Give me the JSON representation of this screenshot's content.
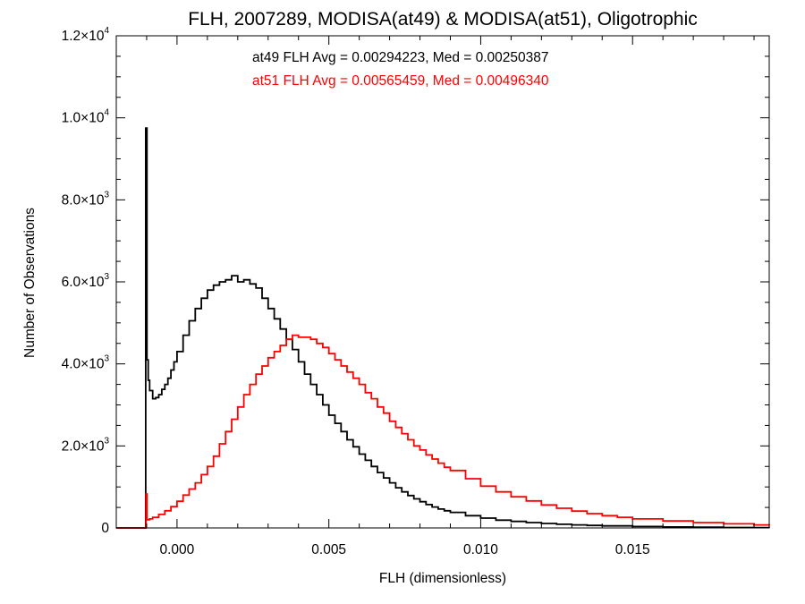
{
  "chart_data": {
    "type": "line",
    "title": "FLH, 2007289, MODISA(at49) & MODISA(at51), Oligotrophic",
    "xlabel": "FLH (dimensionless)",
    "ylabel": "Number of Observations",
    "xlim": [
      -0.002,
      0.0195
    ],
    "ylim": [
      0,
      12000
    ],
    "x_ticks": [
      {
        "value": 0.0,
        "label": "0.000"
      },
      {
        "value": 0.005,
        "label": "0.005"
      },
      {
        "value": 0.01,
        "label": "0.010"
      },
      {
        "value": 0.015,
        "label": "0.015"
      }
    ],
    "y_ticks": [
      {
        "value": 0,
        "mant": "0",
        "exp": ""
      },
      {
        "value": 2000,
        "mant": "2.0×10",
        "exp": "3"
      },
      {
        "value": 4000,
        "mant": "4.0×10",
        "exp": "3"
      },
      {
        "value": 6000,
        "mant": "6.0×10",
        "exp": "3"
      },
      {
        "value": 8000,
        "mant": "8.0×10",
        "exp": "3"
      },
      {
        "value": 10000,
        "mant": "1.0×10",
        "exp": "4"
      },
      {
        "value": 12000,
        "mant": "1.2×10",
        "exp": "4"
      }
    ],
    "annotations": [
      {
        "text": "at49 FLH Avg = 0.00294223, Med = 0.00250387",
        "color": "#000000"
      },
      {
        "text": "at51 FLH Avg = 0.00565459, Med = 0.00496340",
        "color": "#ff0000"
      }
    ],
    "series": [
      {
        "color": "#000000",
        "points": [
          [
            -0.002,
            0
          ],
          [
            -0.00105,
            0
          ],
          [
            -0.00103,
            9750
          ],
          [
            -0.00099,
            4100
          ],
          [
            -0.00095,
            3600
          ],
          [
            -0.0009,
            3350
          ],
          [
            -0.0008,
            3150
          ],
          [
            -0.0007,
            3180
          ],
          [
            -0.0006,
            3250
          ],
          [
            -0.0005,
            3380
          ],
          [
            -0.0004,
            3500
          ],
          [
            -0.0003,
            3650
          ],
          [
            -0.0002,
            3850
          ],
          [
            -0.0001,
            4050
          ],
          [
            0.0,
            4300
          ],
          [
            0.0002,
            4700
          ],
          [
            0.0004,
            5050
          ],
          [
            0.0006,
            5350
          ],
          [
            0.0008,
            5600
          ],
          [
            0.001,
            5800
          ],
          [
            0.0012,
            5920
          ],
          [
            0.0014,
            6000
          ],
          [
            0.0016,
            6050
          ],
          [
            0.0018,
            6150
          ],
          [
            0.002,
            6000
          ],
          [
            0.0022,
            6050
          ],
          [
            0.0024,
            5950
          ],
          [
            0.0026,
            5850
          ],
          [
            0.0028,
            5600
          ],
          [
            0.003,
            5350
          ],
          [
            0.0032,
            5100
          ],
          [
            0.0034,
            4850
          ],
          [
            0.0036,
            4600
          ],
          [
            0.0038,
            4350
          ],
          [
            0.004,
            4050
          ],
          [
            0.0042,
            3750
          ],
          [
            0.0044,
            3500
          ],
          [
            0.0046,
            3250
          ],
          [
            0.0048,
            3000
          ],
          [
            0.005,
            2750
          ],
          [
            0.0052,
            2550
          ],
          [
            0.0054,
            2350
          ],
          [
            0.0056,
            2150
          ],
          [
            0.0058,
            1980
          ],
          [
            0.006,
            1800
          ],
          [
            0.0062,
            1650
          ],
          [
            0.0064,
            1500
          ],
          [
            0.0066,
            1350
          ],
          [
            0.0068,
            1220
          ],
          [
            0.007,
            1100
          ],
          [
            0.0072,
            980
          ],
          [
            0.0074,
            880
          ],
          [
            0.0076,
            790
          ],
          [
            0.0078,
            710
          ],
          [
            0.008,
            640
          ],
          [
            0.0082,
            570
          ],
          [
            0.0084,
            510
          ],
          [
            0.0086,
            460
          ],
          [
            0.0088,
            420
          ],
          [
            0.009,
            380
          ],
          [
            0.0095,
            300
          ],
          [
            0.01,
            240
          ],
          [
            0.0105,
            190
          ],
          [
            0.011,
            160
          ],
          [
            0.0115,
            130
          ],
          [
            0.012,
            110
          ],
          [
            0.0125,
            90
          ],
          [
            0.013,
            75
          ],
          [
            0.0135,
            62
          ],
          [
            0.014,
            50
          ],
          [
            0.015,
            35
          ],
          [
            0.016,
            25
          ],
          [
            0.017,
            18
          ],
          [
            0.018,
            12
          ],
          [
            0.019,
            8
          ],
          [
            0.0195,
            6
          ]
        ]
      },
      {
        "color": "#ff0000",
        "points": [
          [
            -0.002,
            0
          ],
          [
            -0.00105,
            0
          ],
          [
            -0.00102,
            830
          ],
          [
            -0.00099,
            200
          ],
          [
            -0.0009,
            220
          ],
          [
            -0.0008,
            260
          ],
          [
            -0.0006,
            330
          ],
          [
            -0.0004,
            420
          ],
          [
            -0.0002,
            520
          ],
          [
            0.0,
            650
          ],
          [
            0.0002,
            800
          ],
          [
            0.0004,
            950
          ],
          [
            0.0006,
            1100
          ],
          [
            0.0008,
            1300
          ],
          [
            0.001,
            1500
          ],
          [
            0.0012,
            1750
          ],
          [
            0.0014,
            2050
          ],
          [
            0.0016,
            2350
          ],
          [
            0.0018,
            2650
          ],
          [
            0.002,
            2950
          ],
          [
            0.0022,
            3250
          ],
          [
            0.0024,
            3500
          ],
          [
            0.0026,
            3750
          ],
          [
            0.0028,
            3950
          ],
          [
            0.003,
            4150
          ],
          [
            0.0032,
            4300
          ],
          [
            0.0034,
            4450
          ],
          [
            0.0036,
            4600
          ],
          [
            0.0038,
            4700
          ],
          [
            0.004,
            4650
          ],
          [
            0.0042,
            4650
          ],
          [
            0.0044,
            4600
          ],
          [
            0.0046,
            4500
          ],
          [
            0.0048,
            4400
          ],
          [
            0.005,
            4250
          ],
          [
            0.0052,
            4100
          ],
          [
            0.0054,
            3950
          ],
          [
            0.0056,
            3800
          ],
          [
            0.0058,
            3650
          ],
          [
            0.006,
            3500
          ],
          [
            0.0062,
            3300
          ],
          [
            0.0064,
            3150
          ],
          [
            0.0066,
            2950
          ],
          [
            0.0068,
            2800
          ],
          [
            0.007,
            2600
          ],
          [
            0.0072,
            2450
          ],
          [
            0.0074,
            2300
          ],
          [
            0.0076,
            2150
          ],
          [
            0.0078,
            2000
          ],
          [
            0.008,
            1900
          ],
          [
            0.0082,
            1780
          ],
          [
            0.0084,
            1680
          ],
          [
            0.0086,
            1580
          ],
          [
            0.0088,
            1480
          ],
          [
            0.009,
            1400
          ],
          [
            0.0095,
            1200
          ],
          [
            0.01,
            1020
          ],
          [
            0.0105,
            880
          ],
          [
            0.011,
            760
          ],
          [
            0.0115,
            660
          ],
          [
            0.012,
            560
          ],
          [
            0.0125,
            480
          ],
          [
            0.013,
            410
          ],
          [
            0.0135,
            350
          ],
          [
            0.014,
            300
          ],
          [
            0.0145,
            260
          ],
          [
            0.015,
            220
          ],
          [
            0.016,
            170
          ],
          [
            0.017,
            130
          ],
          [
            0.018,
            100
          ],
          [
            0.019,
            75
          ],
          [
            0.0195,
            60
          ]
        ]
      }
    ]
  }
}
